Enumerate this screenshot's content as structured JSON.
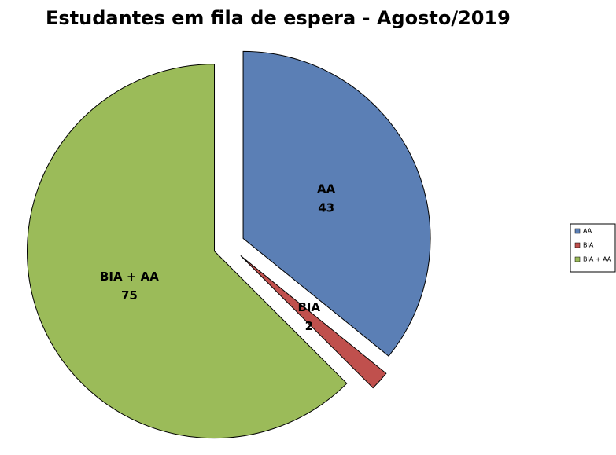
{
  "chart_data": {
    "type": "pie",
    "title": "Estudantes em fila de espera - Agosto/2019",
    "categories": [
      "AA",
      "BIA",
      "BIA + AA"
    ],
    "values": [
      43,
      2,
      75
    ],
    "colors": [
      "#5b7fb5",
      "#c0504d",
      "#9bbb59"
    ],
    "legend": "right"
  }
}
